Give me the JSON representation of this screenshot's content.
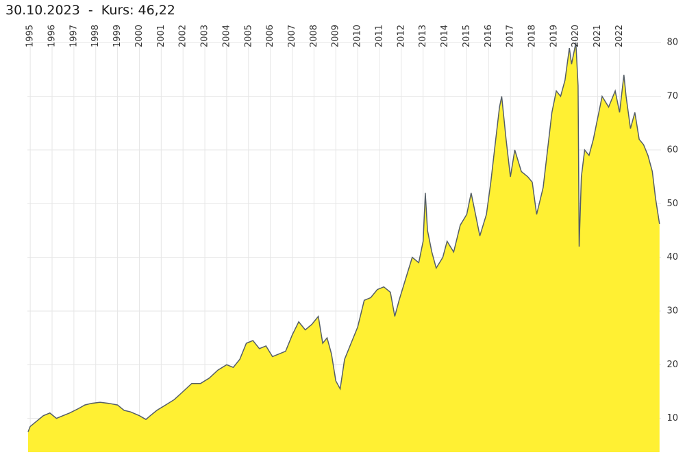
{
  "chart_data": {
    "type": "area",
    "title": "30.10.2023  -  Kurs: 46,22",
    "x": [
      1994.9,
      1995.0,
      1995.3,
      1995.6,
      1995.9,
      1996.2,
      1996.5,
      1996.8,
      1997.2,
      1997.5,
      1997.8,
      1998.2,
      1998.6,
      1999.0,
      1999.3,
      1999.6,
      2000.0,
      2000.3,
      2000.5,
      2000.8,
      2001.2,
      2001.6,
      2002.0,
      2002.4,
      2002.8,
      2003.2,
      2003.6,
      2004.0,
      2004.3,
      2004.6,
      2004.9,
      2005.2,
      2005.5,
      2005.8,
      2006.1,
      2006.4,
      2006.7,
      2007.0,
      2007.3,
      2007.6,
      2007.9,
      2008.2,
      2008.4,
      2008.6,
      2008.8,
      2009.0,
      2009.2,
      2009.4,
      2009.7,
      2010.0,
      2010.3,
      2010.6,
      2010.9,
      2011.2,
      2011.5,
      2011.7,
      2011.9,
      2012.2,
      2012.5,
      2012.8,
      2013.0,
      2013.1,
      2013.2,
      2013.4,
      2013.6,
      2013.9,
      2014.1,
      2014.4,
      2014.7,
      2015.0,
      2015.2,
      2015.4,
      2015.6,
      2015.9,
      2016.1,
      2016.3,
      2016.5,
      2016.6,
      2016.8,
      2017.0,
      2017.2,
      2017.5,
      2017.8,
      2018.0,
      2018.2,
      2018.5,
      2018.7,
      2018.9,
      2019.1,
      2019.3,
      2019.5,
      2019.7,
      2019.8,
      2020.0,
      2020.1,
      2020.15,
      2020.25,
      2020.4,
      2020.6,
      2020.8,
      2021.0,
      2021.2,
      2021.5,
      2021.8,
      2022.0,
      2022.2,
      2022.3,
      2022.5,
      2022.7,
      2022.9,
      2023.1,
      2023.3,
      2023.5,
      2023.65,
      2023.83
    ],
    "values": [
      7.5,
      8.5,
      9.5,
      10.5,
      11,
      10,
      10.5,
      11,
      11.8,
      12.5,
      12.8,
      13,
      12.8,
      12.5,
      11.5,
      11.2,
      10.5,
      9.8,
      10.5,
      11.5,
      12.5,
      13.5,
      15,
      16.5,
      16.5,
      17.5,
      19,
      20,
      19.5,
      21,
      24,
      24.5,
      23,
      23.5,
      21.5,
      22,
      22.5,
      25.5,
      28,
      26.5,
      27.5,
      29,
      24,
      25,
      22,
      17,
      15.5,
      21,
      24,
      27,
      32,
      32.5,
      34,
      34.5,
      33.5,
      29,
      32,
      36,
      40,
      39,
      43,
      52,
      45,
      41,
      38,
      40,
      43,
      41,
      46,
      48,
      52,
      48,
      44,
      48,
      54,
      61,
      68,
      70,
      62,
      55,
      60,
      56,
      55,
      54,
      48,
      53,
      60,
      67,
      71,
      70,
      73,
      79,
      76,
      80,
      72,
      42,
      55,
      60,
      59,
      62,
      66,
      70,
      68,
      71,
      67,
      74,
      70,
      64,
      67,
      62,
      61,
      59,
      56,
      51,
      46.22
    ],
    "color": "#fff033",
    "line_color": "#555e66",
    "xlim": [
      1994.87,
      2023.9
    ],
    "xticks": [
      1995,
      1996,
      1997,
      1998,
      1999,
      2000,
      2001,
      2002,
      2003,
      2004,
      2005,
      2006,
      2007,
      2008,
      2009,
      2010,
      2011,
      2012,
      2013,
      2014,
      2015,
      2016,
      2017,
      2018,
      2019,
      2020,
      2021,
      2022
    ],
    "ylim": [
      3.7,
      82.2
    ],
    "yticks": [
      10,
      20,
      30,
      40,
      50,
      60,
      70,
      80
    ],
    "grid": true
  }
}
